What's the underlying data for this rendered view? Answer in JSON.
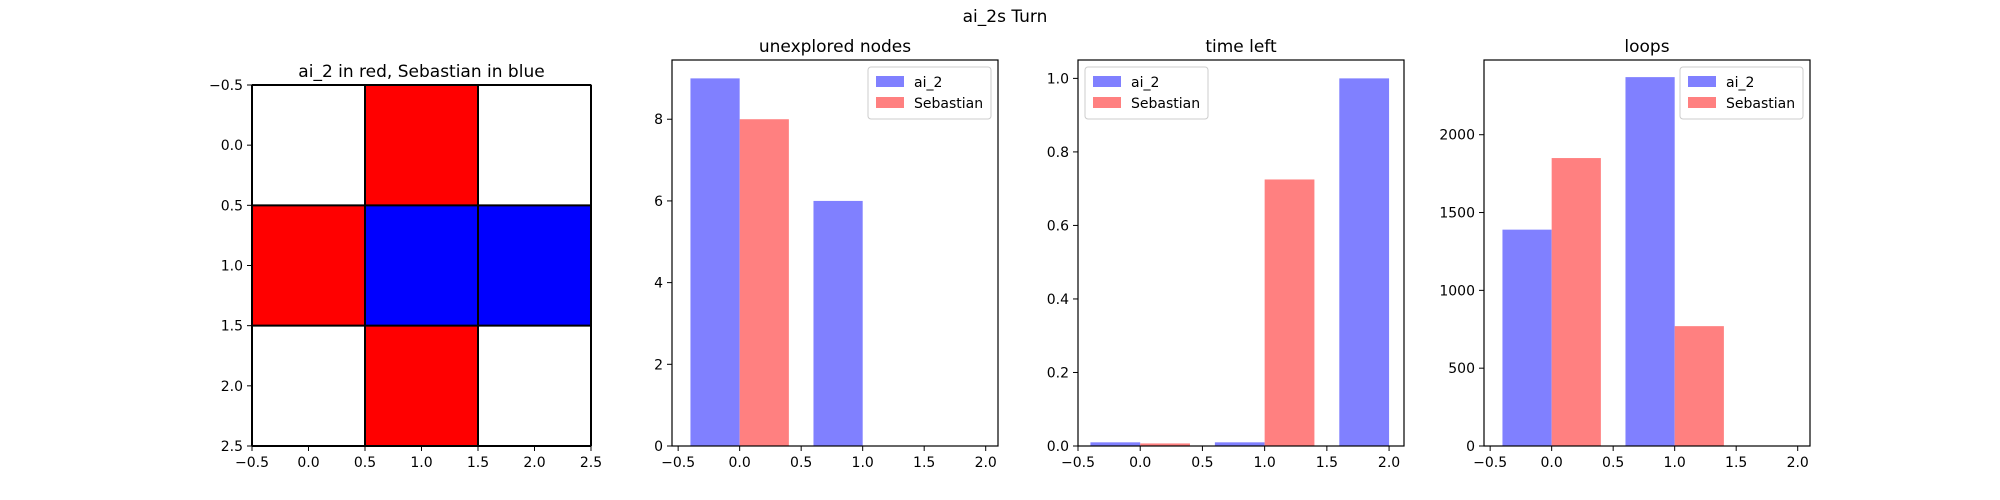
{
  "figure": {
    "suptitle": "ai_2s Turn"
  },
  "chart_data": [
    {
      "type": "heatmap",
      "title": "ai_2 in red, Sebastian in blue",
      "xlim": [
        -0.5,
        2.5
      ],
      "ylim": [
        2.5,
        -0.5
      ],
      "xticks": [
        "−0.5",
        "0.0",
        "0.5",
        "1.0",
        "1.5",
        "2.0",
        "2.5"
      ],
      "yticks": [
        "−0.5",
        "0.0",
        "0.5",
        "1.0",
        "1.5",
        "2.0",
        "2.5"
      ],
      "grid_colors": [
        [
          "#ffffff",
          "#ff0000",
          "#ffffff"
        ],
        [
          "#ff0000",
          "#0000ff",
          "#0000ff"
        ],
        [
          "#ffffff",
          "#ff0000",
          "#ffffff"
        ]
      ]
    },
    {
      "type": "bar",
      "title": "unexplored nodes",
      "xlim": [
        -0.55,
        2.1
      ],
      "ylim": [
        0,
        9.45
      ],
      "xticks": [
        "−0.5",
        "0.0",
        "0.5",
        "1.0",
        "1.5",
        "2.0"
      ],
      "yticks": [
        "0",
        "2",
        "4",
        "6",
        "8"
      ],
      "series": [
        {
          "name": "ai_2",
          "color": "#8080ff",
          "x": [
            0,
            1,
            2
          ],
          "values": [
            9,
            6,
            0
          ]
        },
        {
          "name": "Sebastian",
          "color": "#ff8080",
          "x": [
            0,
            1,
            2
          ],
          "values": [
            8,
            0,
            0
          ]
        }
      ],
      "legend": "upper right"
    },
    {
      "type": "bar",
      "title": "time left",
      "xlim": [
        -0.5,
        2.12
      ],
      "ylim": [
        0,
        1.05
      ],
      "xticks": [
        "−0.5",
        "0.0",
        "0.5",
        "1.0",
        "1.5",
        "2.0"
      ],
      "yticks": [
        "0.0",
        "0.2",
        "0.4",
        "0.6",
        "0.8",
        "1.0"
      ],
      "series": [
        {
          "name": "ai_2",
          "color": "#8080ff",
          "x": [
            0,
            1,
            2
          ],
          "values": [
            0.01,
            0.01,
            1.0
          ]
        },
        {
          "name": "Sebastian",
          "color": "#ff8080",
          "x": [
            0,
            1,
            2
          ],
          "values": [
            0.007,
            0.725,
            0
          ]
        }
      ],
      "legend": "upper left"
    },
    {
      "type": "bar",
      "title": "loops",
      "xlim": [
        -0.55,
        2.1
      ],
      "ylim": [
        0,
        2480
      ],
      "xticks": [
        "−0.5",
        "0.0",
        "0.5",
        "1.0",
        "1.5",
        "2.0"
      ],
      "yticks": [
        "0",
        "500",
        "1000",
        "1500",
        "2000"
      ],
      "ytick_values": [
        0,
        500,
        1000,
        1500,
        2000
      ],
      "series": [
        {
          "name": "ai_2",
          "color": "#8080ff",
          "x": [
            0,
            1,
            2
          ],
          "values": [
            1390,
            2370,
            0
          ]
        },
        {
          "name": "Sebastian",
          "color": "#ff8080",
          "x": [
            0,
            1,
            2
          ],
          "values": [
            1850,
            770,
            0
          ]
        }
      ],
      "legend": "upper right"
    }
  ]
}
